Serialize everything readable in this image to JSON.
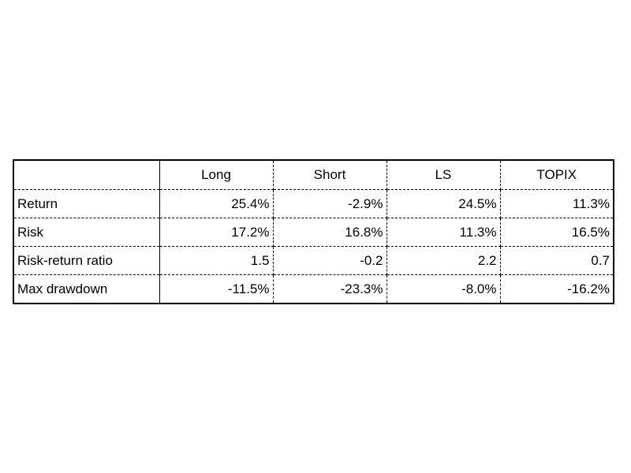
{
  "chart_data": {
    "type": "table",
    "columns": [
      "",
      "Long",
      "Short",
      "LS",
      "TOPIX"
    ],
    "rows": [
      {
        "label": "Return",
        "values": [
          "25.4%",
          "-2.9%",
          "24.5%",
          "11.3%"
        ]
      },
      {
        "label": "Risk",
        "values": [
          "17.2%",
          "16.8%",
          "11.3%",
          "16.5%"
        ]
      },
      {
        "label": "Risk-return ratio",
        "values": [
          "1.5",
          "-0.2",
          "2.2",
          "0.7"
        ]
      },
      {
        "label": "Max drawdown",
        "values": [
          "-11.5%",
          "-23.3%",
          "-8.0%",
          "-16.2%"
        ]
      }
    ]
  }
}
